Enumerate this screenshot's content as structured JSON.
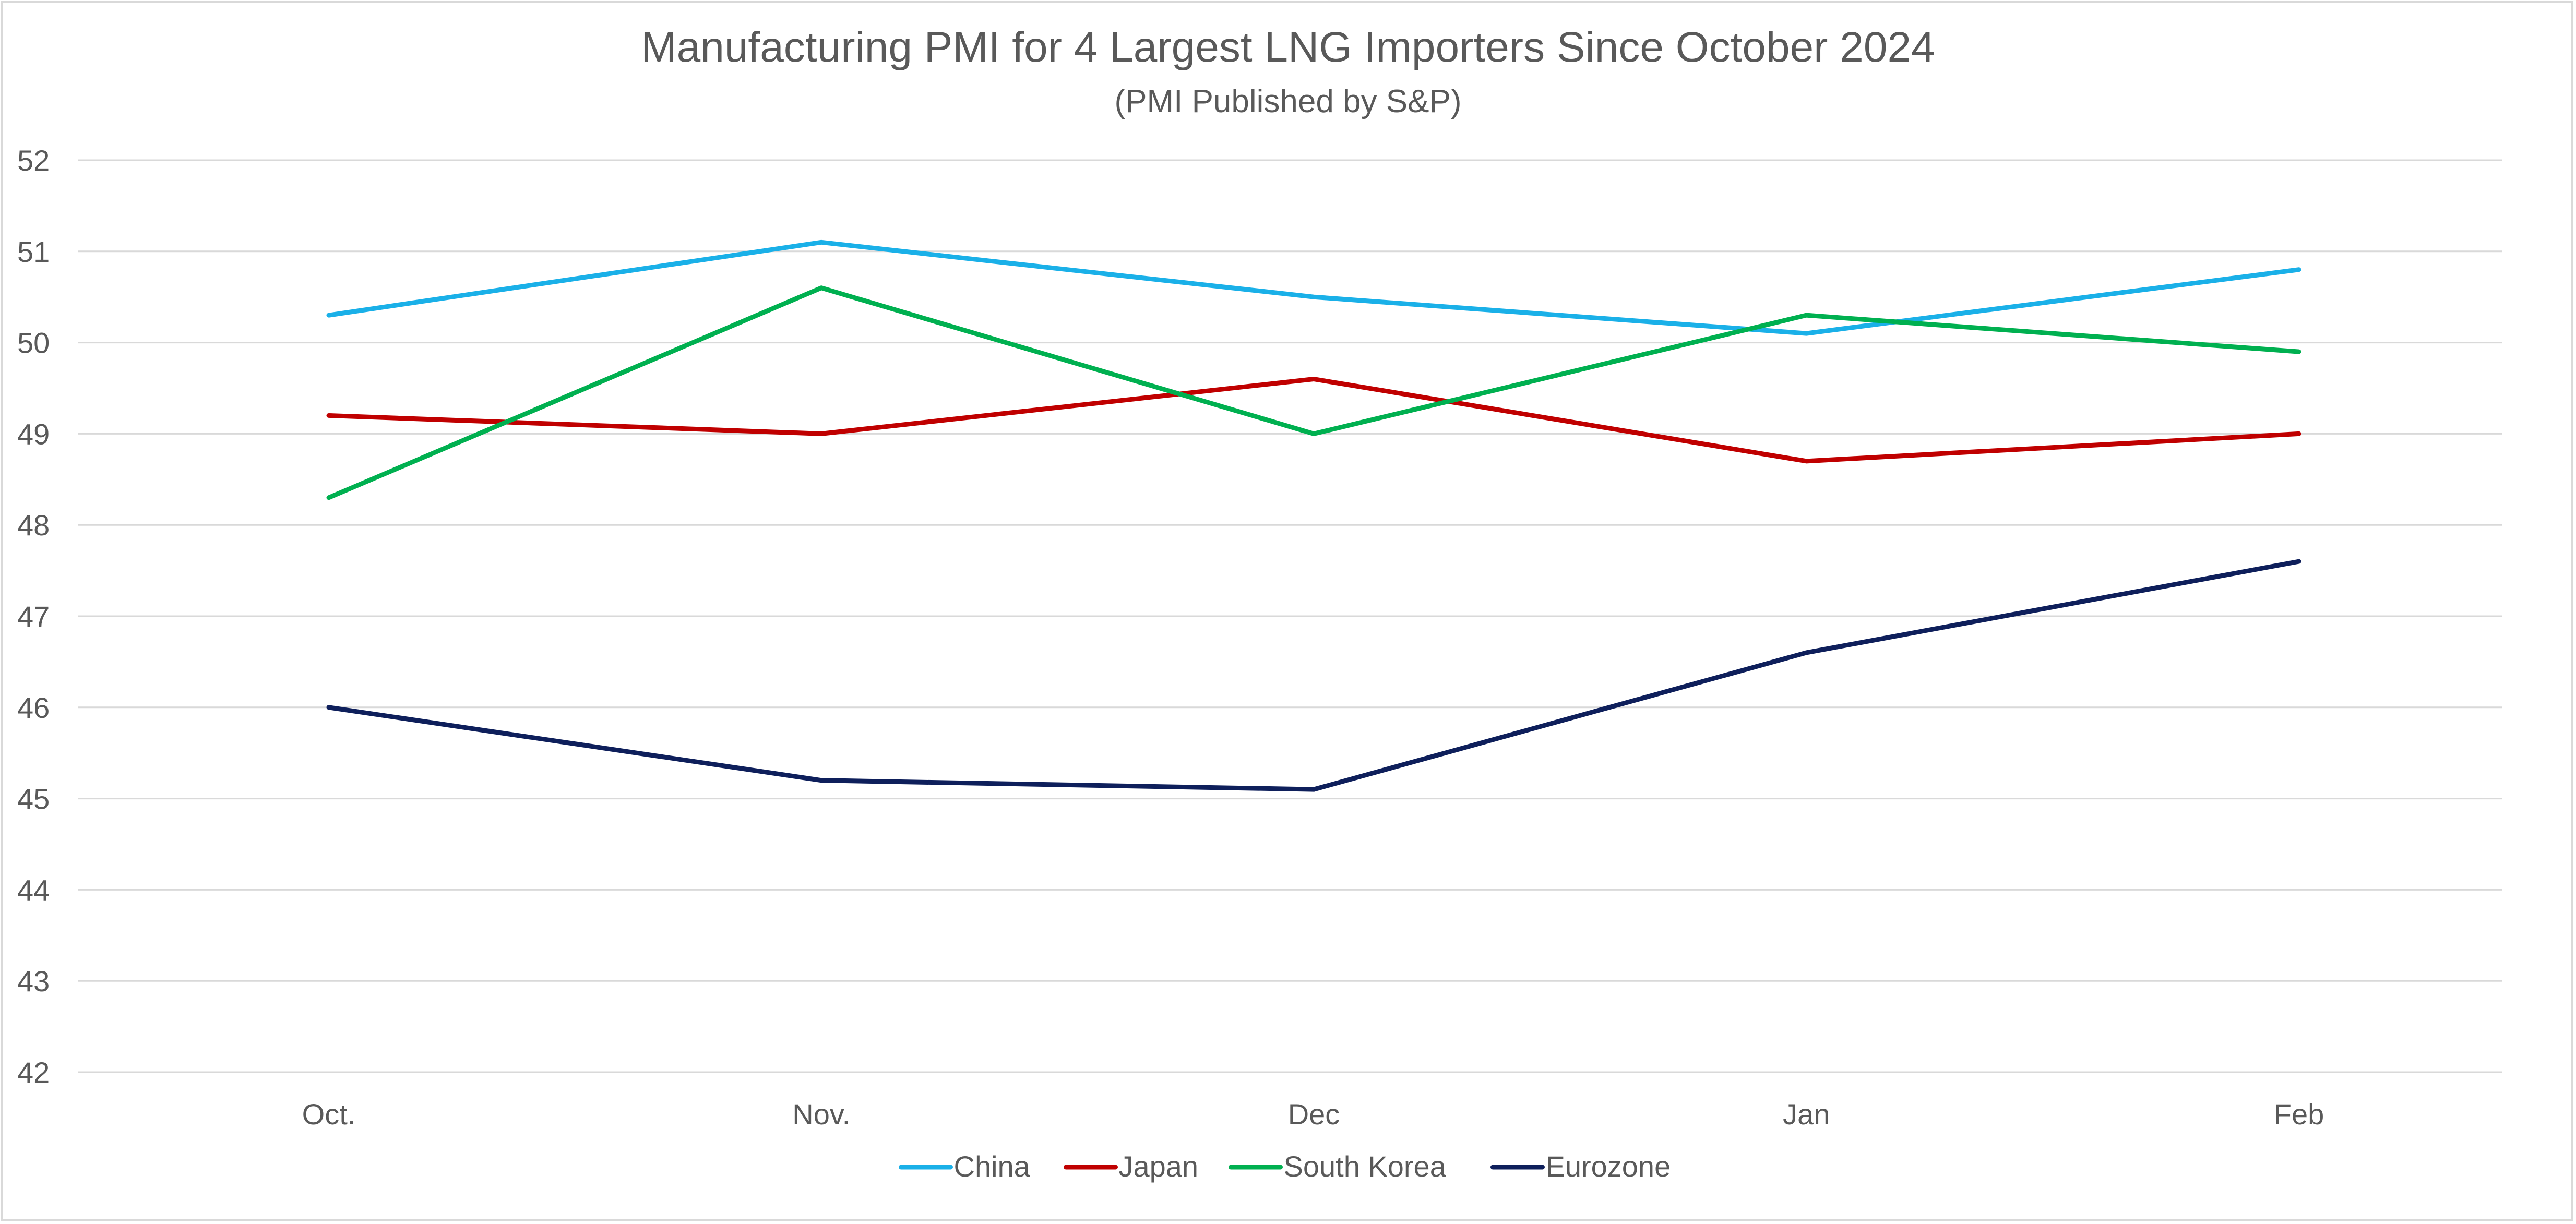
{
  "chart_data": {
    "type": "line",
    "title": "Manufacturing PMI for 4 Largest LNG Importers Since October 2024",
    "subtitle": "(PMI Published by S&P)",
    "xlabel": "",
    "ylabel": "",
    "categories": [
      "Oct.",
      "Nov.",
      "Dec",
      "Jan",
      "Feb"
    ],
    "ylim": [
      42,
      52
    ],
    "yticks": [
      42,
      43,
      44,
      45,
      46,
      47,
      48,
      49,
      50,
      51,
      52
    ],
    "grid": true,
    "legend_position": "bottom",
    "series": [
      {
        "name": "China",
        "color": "#1ab0e8",
        "values": [
          50.3,
          51.1,
          50.5,
          50.1,
          50.8
        ]
      },
      {
        "name": "Japan",
        "color": "#c00000",
        "values": [
          49.2,
          49.0,
          49.6,
          48.7,
          49.0
        ]
      },
      {
        "name": "South Korea",
        "color": "#00b050",
        "values": [
          48.3,
          50.6,
          49.0,
          50.3,
          49.9
        ]
      },
      {
        "name": "Eurozone",
        "color": "#0e1f5b",
        "values": [
          46.0,
          45.2,
          45.1,
          46.6,
          47.6
        ]
      }
    ]
  }
}
